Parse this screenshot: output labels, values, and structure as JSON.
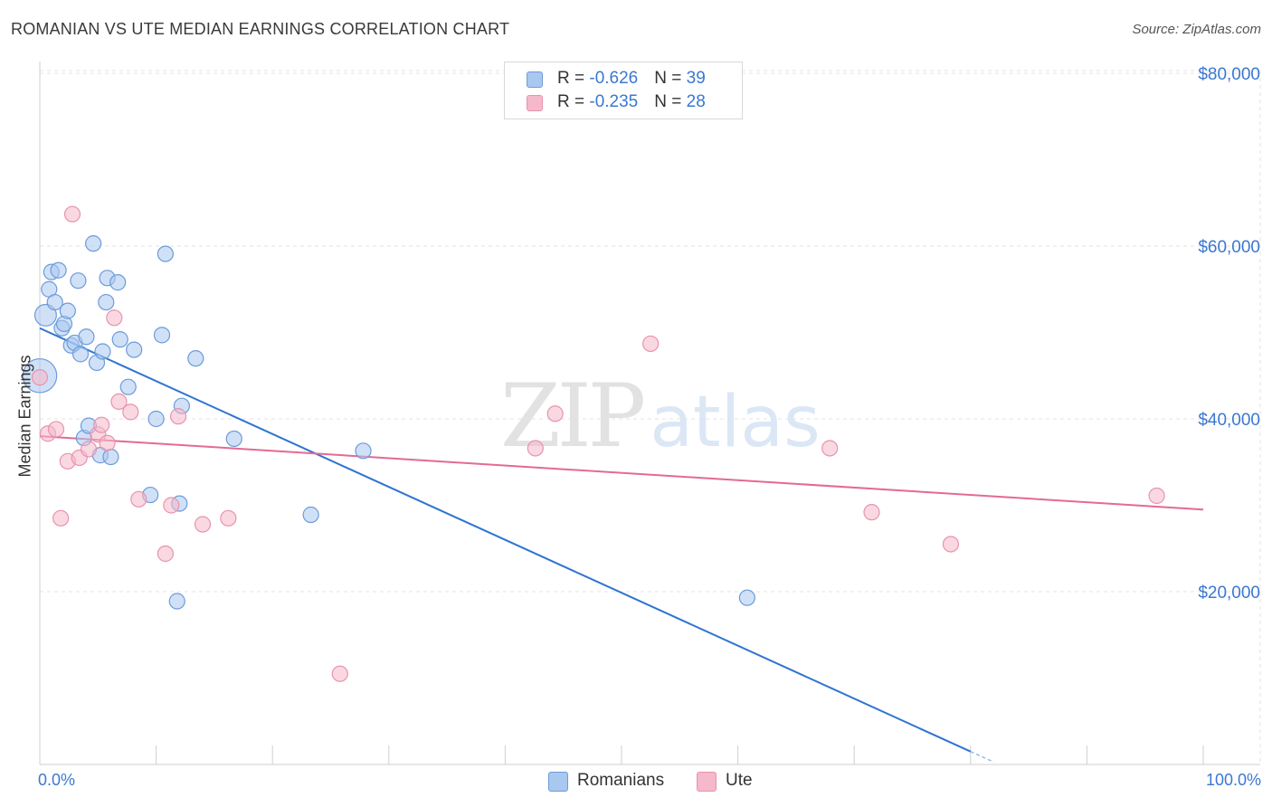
{
  "header": {
    "title": "ROMANIAN VS UTE MEDIAN EARNINGS CORRELATION CHART",
    "source": "Source: ZipAtlas.com"
  },
  "watermark": {
    "zip": "ZIP",
    "atlas": "atlas"
  },
  "legend": {
    "rows": [
      {
        "r_label": "R = ",
        "r_value": "-0.626",
        "n_label": "N = ",
        "n_value": "39",
        "color": "#a9c8f0"
      },
      {
        "r_label": "R = ",
        "r_value": "-0.235",
        "n_label": "N = ",
        "n_value": "28",
        "color": "#f6b8cb"
      }
    ]
  },
  "bottom_legend": {
    "romanians": "Romanians",
    "ute": "Ute"
  },
  "colors": {
    "romanians_fill": "#a9c8f0",
    "romanians_stroke": "#6c9bd9",
    "romanians_line": "#2f74d0",
    "ute_fill": "#f6b8cb",
    "ute_stroke": "#e893ad",
    "ute_line": "#e36a93",
    "grid": "#e3e3e3",
    "axis_text": "#3b78d0"
  },
  "chart_data": {
    "type": "scatter",
    "title": "ROMANIAN VS UTE MEDIAN EARNINGS CORRELATION CHART",
    "xlabel": "",
    "ylabel": "Median Earnings",
    "x_tick_labels": [
      "0.0%",
      "100.0%"
    ],
    "y_tick_labels": [
      "$20,000",
      "$40,000",
      "$60,000",
      "$80,000"
    ],
    "y_ticks": [
      20000,
      40000,
      60000,
      80000
    ],
    "xlim": [
      0,
      1
    ],
    "ylim": [
      0,
      82000
    ],
    "grid": true,
    "legend_position": "top-center",
    "series": [
      {
        "name": "Romanians",
        "r": -0.626,
        "n": 39,
        "trend": {
          "x0": 0.0,
          "y0": 50500,
          "x1": 0.8,
          "y1": 1500,
          "dash_to_x": 0.82
        },
        "points": [
          {
            "x": 0.0,
            "y": 45000,
            "s": 2.2
          },
          {
            "x": 0.005,
            "y": 52000,
            "s": 1.4
          },
          {
            "x": 0.008,
            "y": 55000
          },
          {
            "x": 0.01,
            "y": 57000
          },
          {
            "x": 0.013,
            "y": 53500
          },
          {
            "x": 0.016,
            "y": 57200
          },
          {
            "x": 0.019,
            "y": 50500
          },
          {
            "x": 0.021,
            "y": 51000
          },
          {
            "x": 0.024,
            "y": 52500
          },
          {
            "x": 0.027,
            "y": 48500
          },
          {
            "x": 0.03,
            "y": 48800
          },
          {
            "x": 0.033,
            "y": 56000
          },
          {
            "x": 0.035,
            "y": 47500
          },
          {
            "x": 0.038,
            "y": 37800
          },
          {
            "x": 0.04,
            "y": 49500
          },
          {
            "x": 0.042,
            "y": 39200
          },
          {
            "x": 0.046,
            "y": 60300
          },
          {
            "x": 0.049,
            "y": 46500
          },
          {
            "x": 0.052,
            "y": 35800
          },
          {
            "x": 0.054,
            "y": 47800
          },
          {
            "x": 0.057,
            "y": 53500
          },
          {
            "x": 0.058,
            "y": 56300
          },
          {
            "x": 0.061,
            "y": 35600
          },
          {
            "x": 0.067,
            "y": 55800
          },
          {
            "x": 0.069,
            "y": 49200
          },
          {
            "x": 0.076,
            "y": 43700
          },
          {
            "x": 0.081,
            "y": 48000
          },
          {
            "x": 0.095,
            "y": 31200
          },
          {
            "x": 0.1,
            "y": 40000
          },
          {
            "x": 0.105,
            "y": 49700
          },
          {
            "x": 0.108,
            "y": 59100
          },
          {
            "x": 0.118,
            "y": 18900
          },
          {
            "x": 0.12,
            "y": 30200
          },
          {
            "x": 0.122,
            "y": 41500
          },
          {
            "x": 0.134,
            "y": 47000
          },
          {
            "x": 0.167,
            "y": 37700
          },
          {
            "x": 0.233,
            "y": 28900
          },
          {
            "x": 0.278,
            "y": 36300
          },
          {
            "x": 0.608,
            "y": 19300
          }
        ]
      },
      {
        "name": "Ute",
        "r": -0.235,
        "n": 28,
        "trend": {
          "x0": 0.0,
          "y0": 38000,
          "x1": 1.0,
          "y1": 29500
        },
        "points": [
          {
            "x": 0.0,
            "y": 44800
          },
          {
            "x": 0.007,
            "y": 38300
          },
          {
            "x": 0.014,
            "y": 38800
          },
          {
            "x": 0.018,
            "y": 28500
          },
          {
            "x": 0.024,
            "y": 35100
          },
          {
            "x": 0.028,
            "y": 63700
          },
          {
            "x": 0.034,
            "y": 35500
          },
          {
            "x": 0.042,
            "y": 36500
          },
          {
            "x": 0.05,
            "y": 38200
          },
          {
            "x": 0.053,
            "y": 39300
          },
          {
            "x": 0.058,
            "y": 37200
          },
          {
            "x": 0.064,
            "y": 51700
          },
          {
            "x": 0.068,
            "y": 42000
          },
          {
            "x": 0.078,
            "y": 40800
          },
          {
            "x": 0.085,
            "y": 30700
          },
          {
            "x": 0.108,
            "y": 24400
          },
          {
            "x": 0.113,
            "y": 30000
          },
          {
            "x": 0.119,
            "y": 40300
          },
          {
            "x": 0.14,
            "y": 27800
          },
          {
            "x": 0.162,
            "y": 28500
          },
          {
            "x": 0.258,
            "y": 10500
          },
          {
            "x": 0.426,
            "y": 36600
          },
          {
            "x": 0.443,
            "y": 40600
          },
          {
            "x": 0.525,
            "y": 48700
          },
          {
            "x": 0.679,
            "y": 36600
          },
          {
            "x": 0.715,
            "y": 29200
          },
          {
            "x": 0.783,
            "y": 25500
          },
          {
            "x": 0.96,
            "y": 31100
          }
        ]
      }
    ]
  }
}
